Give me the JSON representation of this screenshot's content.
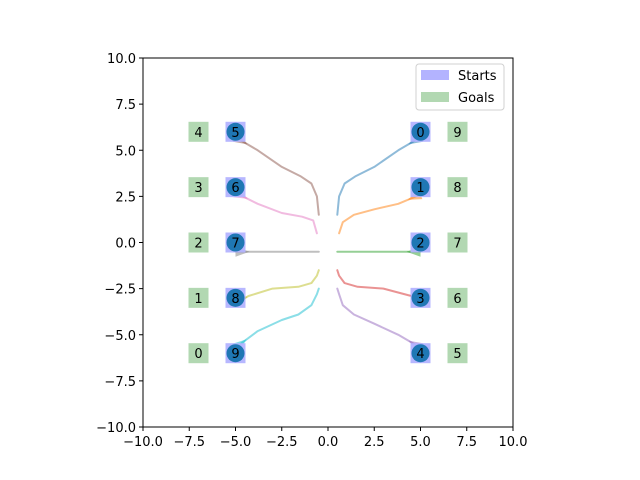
{
  "chart_data": {
    "type": "scatter",
    "xlim": [
      -10,
      10
    ],
    "ylim": [
      -10,
      10
    ],
    "xticks": [
      -10,
      -7.5,
      -5,
      -2.5,
      0,
      2.5,
      5,
      7.5,
      10
    ],
    "yticks": [
      -10,
      -7.5,
      -5,
      -2.5,
      0,
      2.5,
      5,
      7.5,
      10
    ],
    "xtick_labels": [
      "−10.0",
      "−7.5",
      "−5.0",
      "−2.5",
      "0.0",
      "2.5",
      "5.0",
      "7.5",
      "10.0"
    ],
    "ytick_labels": [
      "−10.0",
      "−7.5",
      "−5.0",
      "−2.5",
      "0.0",
      "2.5",
      "5.0",
      "7.5",
      "10.0"
    ],
    "grid": false,
    "legend": {
      "placement": "top-right",
      "entries": [
        {
          "label": "Starts",
          "color": "#b3b3ff"
        },
        {
          "label": "Goals",
          "color": "#b2d8b2"
        }
      ]
    },
    "starts": [
      {
        "id": "0",
        "x": 5,
        "y": 6
      },
      {
        "id": "1",
        "x": 5,
        "y": 3
      },
      {
        "id": "2",
        "x": 5,
        "y": 0
      },
      {
        "id": "3",
        "x": 5,
        "y": -3
      },
      {
        "id": "4",
        "x": 5,
        "y": -6
      },
      {
        "id": "5",
        "x": -5,
        "y": 6
      },
      {
        "id": "6",
        "x": -5,
        "y": 3
      },
      {
        "id": "7",
        "x": -5,
        "y": 0
      },
      {
        "id": "8",
        "x": -5,
        "y": -3
      },
      {
        "id": "9",
        "x": -5,
        "y": -6
      }
    ],
    "goals": [
      {
        "id": "0",
        "x": -7,
        "y": -6
      },
      {
        "id": "1",
        "x": -7,
        "y": -3
      },
      {
        "id": "2",
        "x": -7,
        "y": 0
      },
      {
        "id": "3",
        "x": -7,
        "y": 3
      },
      {
        "id": "4",
        "x": -7,
        "y": 6
      },
      {
        "id": "5",
        "x": 7,
        "y": -6
      },
      {
        "id": "6",
        "x": 7,
        "y": -3
      },
      {
        "id": "7",
        "x": 7,
        "y": 0
      },
      {
        "id": "8",
        "x": 7,
        "y": 3
      },
      {
        "id": "9",
        "x": 7,
        "y": 6
      }
    ],
    "agents": [
      {
        "id": "0",
        "x": 5,
        "y": 6
      },
      {
        "id": "1",
        "x": 5,
        "y": 3
      },
      {
        "id": "2",
        "x": 5,
        "y": 0
      },
      {
        "id": "3",
        "x": 5,
        "y": -3
      },
      {
        "id": "4",
        "x": 5,
        "y": -6
      },
      {
        "id": "5",
        "x": -5,
        "y": 6
      },
      {
        "id": "6",
        "x": -5,
        "y": 3
      },
      {
        "id": "7",
        "x": -5,
        "y": 0
      },
      {
        "id": "8",
        "x": -5,
        "y": -3
      },
      {
        "id": "9",
        "x": -5,
        "y": -6
      }
    ],
    "agent_color": "#1f77b4",
    "trajectories": [
      {
        "id": "0",
        "color": "#1f77b4",
        "points": [
          [
            5.0,
            5.7
          ],
          [
            3.8,
            5.0
          ],
          [
            2.5,
            4.1
          ],
          [
            1.5,
            3.6
          ],
          [
            0.9,
            3.2
          ],
          [
            0.6,
            2.5
          ],
          [
            0.5,
            1.5
          ]
        ]
      },
      {
        "id": "1",
        "color": "#ff7f0e",
        "points": [
          [
            5.0,
            2.6
          ],
          [
            3.8,
            2.1
          ],
          [
            2.5,
            1.8
          ],
          [
            1.4,
            1.5
          ],
          [
            0.8,
            1.1
          ],
          [
            0.6,
            0.5
          ]
        ]
      },
      {
        "id": "2",
        "color": "#2ca02c",
        "points": [
          [
            5.0,
            -0.5
          ],
          [
            3.0,
            -0.5
          ],
          [
            1.5,
            -0.5
          ],
          [
            0.5,
            -0.5
          ]
        ]
      },
      {
        "id": "3",
        "color": "#d62728",
        "points": [
          [
            5.0,
            -3.3
          ],
          [
            4.5,
            -2.9
          ],
          [
            3.0,
            -2.5
          ],
          [
            1.6,
            -2.4
          ],
          [
            0.9,
            -2.2
          ],
          [
            0.6,
            -1.8
          ],
          [
            0.5,
            -1.5
          ]
        ]
      },
      {
        "id": "4",
        "color": "#9467bd",
        "points": [
          [
            5.0,
            -5.7
          ],
          [
            3.8,
            -5.0
          ],
          [
            2.5,
            -4.4
          ],
          [
            1.4,
            -3.9
          ],
          [
            0.8,
            -3.4
          ],
          [
            0.6,
            -2.8
          ],
          [
            0.5,
            -2.5
          ]
        ]
      },
      {
        "id": "5",
        "color": "#8c564b",
        "points": [
          [
            -5.0,
            5.7
          ],
          [
            -3.8,
            5.0
          ],
          [
            -2.5,
            4.1
          ],
          [
            -1.5,
            3.6
          ],
          [
            -0.9,
            3.2
          ],
          [
            -0.6,
            2.5
          ],
          [
            -0.5,
            1.5
          ]
        ]
      },
      {
        "id": "6",
        "color": "#e377c2",
        "points": [
          [
            -5.0,
            2.7
          ],
          [
            -3.8,
            2.1
          ],
          [
            -2.5,
            1.6
          ],
          [
            -1.4,
            1.4
          ],
          [
            -0.8,
            1.2
          ],
          [
            -0.6,
            0.5
          ]
        ]
      },
      {
        "id": "7",
        "color": "#7f7f7f",
        "points": [
          [
            -5.0,
            -0.5
          ],
          [
            -3.0,
            -0.5
          ],
          [
            -1.5,
            -0.5
          ],
          [
            -0.5,
            -0.5
          ]
        ]
      },
      {
        "id": "8",
        "color": "#bcbd22",
        "points": [
          [
            -5.0,
            -3.3
          ],
          [
            -4.3,
            -2.9
          ],
          [
            -3.0,
            -2.5
          ],
          [
            -1.6,
            -2.4
          ],
          [
            -0.9,
            -2.2
          ],
          [
            -0.6,
            -1.8
          ],
          [
            -0.5,
            -1.5
          ]
        ]
      },
      {
        "id": "9",
        "color": "#17becf",
        "points": [
          [
            -5.0,
            -5.7
          ],
          [
            -3.8,
            -4.8
          ],
          [
            -2.5,
            -4.2
          ],
          [
            -1.6,
            -3.9
          ],
          [
            -0.9,
            -3.4
          ],
          [
            -0.6,
            -2.8
          ],
          [
            -0.5,
            -2.5
          ]
        ]
      }
    ]
  }
}
